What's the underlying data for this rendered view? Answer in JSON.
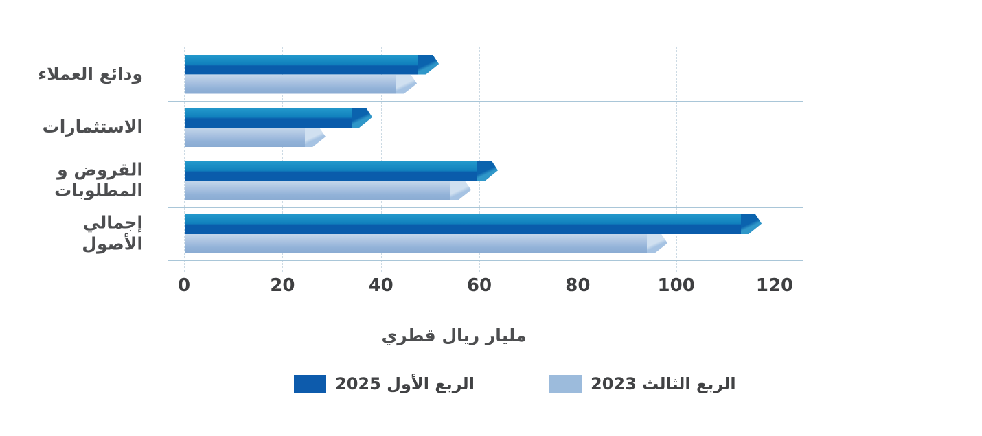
{
  "chart": {
    "unit_label": "مليار ريال قطري",
    "colors": {
      "series_dark": "#0a5cab",
      "series_light": "#9cbbdc",
      "separator_line": "#a9c6d8",
      "dashed_grid": "#ccdae4",
      "text": "#4d4e50"
    },
    "legend": [
      {
        "label": "الربع الأول 2025",
        "color": "#0d5bac"
      },
      {
        "label": "الربع الثالث 2023",
        "color": "#9cbbdc"
      }
    ]
  },
  "chart_data": {
    "type": "bar",
    "orientation": "horizontal",
    "title": "",
    "categories": [
      "ودائع العملاء",
      "الاستثمارات",
      "القروض و\nالمطلوبات",
      "إجمالي الأصول"
    ],
    "series": [
      {
        "name": "الربع الأول 2025",
        "color": "#0a5cab",
        "values": [
          51.5,
          38,
          63.5,
          117
        ]
      },
      {
        "name": "الربع الثالث 2023",
        "color": "#9cbbdc",
        "values": [
          47,
          28.5,
          58,
          98
        ]
      }
    ],
    "xlabel": "مليار ريال قطري",
    "xticks": [
      0,
      20,
      40,
      60,
      80,
      100,
      120
    ],
    "xlim": [
      0,
      126
    ],
    "grid": "dashed-vertical",
    "legend_position": "bottom"
  }
}
